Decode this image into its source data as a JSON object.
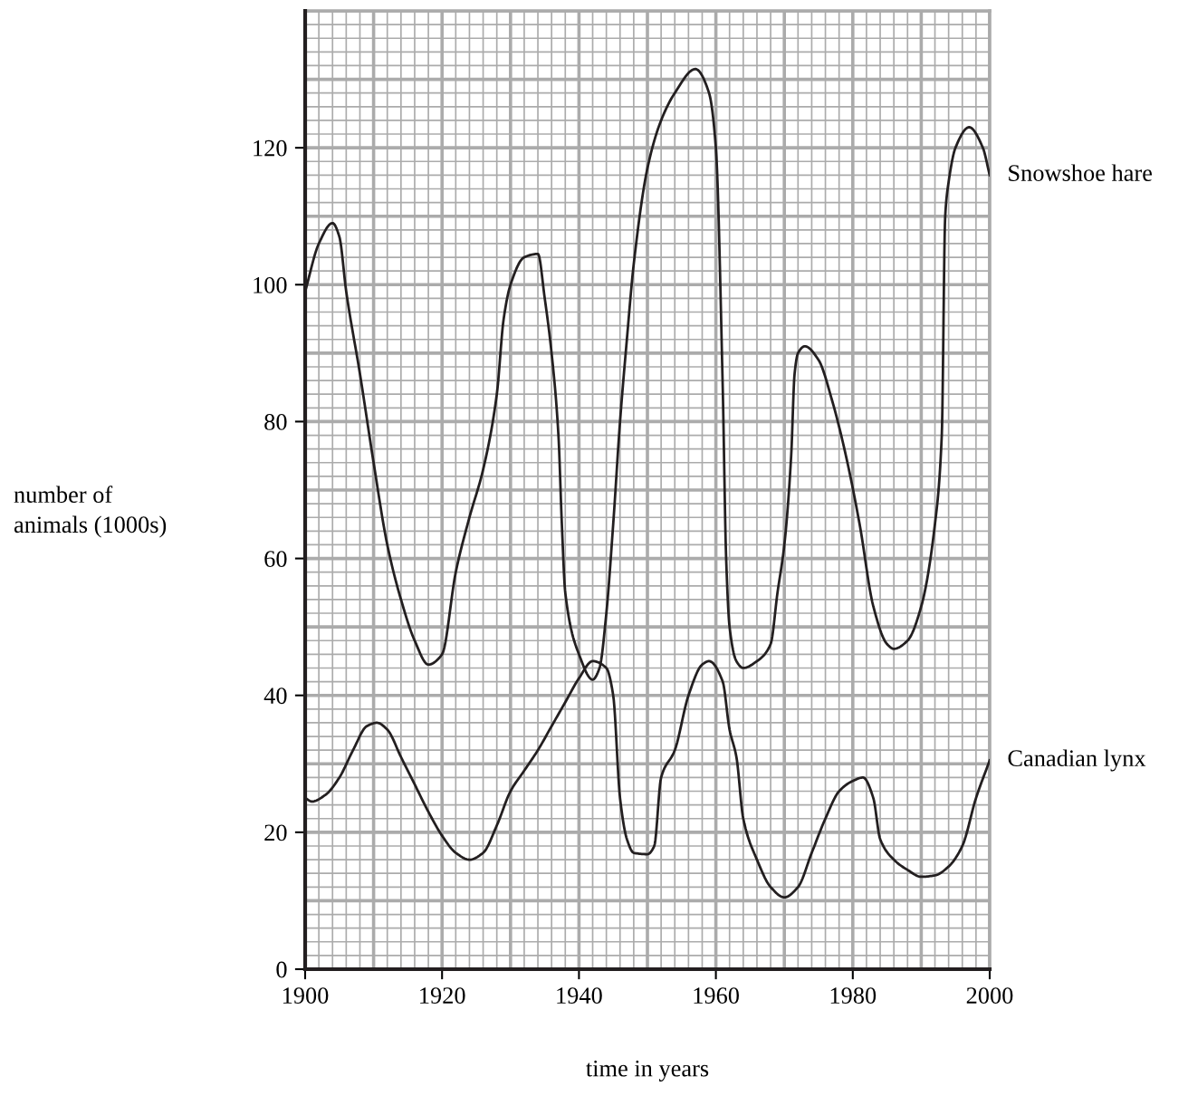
{
  "chart_data": {
    "type": "line",
    "xlabel": "time in years",
    "ylabel": "number of\nanimals (1000s)",
    "xlim": [
      1900,
      2000
    ],
    "xticks": [
      1900,
      1920,
      1940,
      1960,
      1980,
      2000
    ],
    "ylim": [
      0,
      140
    ],
    "yticks": [
      0,
      20,
      40,
      60,
      80,
      100,
      120
    ],
    "grid": true,
    "legend": false,
    "marker": "none",
    "line_style": "solid",
    "series": [
      {
        "name": "Snowshoe hare",
        "color": "#231f20",
        "x": [
          1900,
          1902,
          1904,
          1905,
          1906,
          1908,
          1910,
          1912,
          1914,
          1916,
          1918,
          1920,
          1922,
          1924,
          1926,
          1928,
          1929,
          1930,
          1932,
          1934,
          1935,
          1936,
          1937,
          1937.5,
          1938,
          1940,
          1942,
          1943,
          1944,
          1945,
          1946,
          1947,
          1948,
          1950,
          1952,
          1954,
          1957,
          1959,
          1960,
          1961,
          1961.5,
          1962,
          1963,
          1964,
          1966,
          1968,
          1969,
          1970,
          1971,
          1971.5,
          1972,
          1973,
          1975,
          1977,
          1979,
          1981,
          1983,
          1985,
          1986,
          1988,
          1990,
          1992,
          1993,
          1993.5,
          1994,
          1995,
          1997,
          1999,
          2000
        ],
        "values": [
          99,
          106,
          109,
          107,
          99,
          87,
          74,
          62,
          54,
          48,
          44.5,
          46,
          58,
          66,
          73,
          84,
          95,
          100,
          104,
          104.5,
          98,
          90,
          78,
          65,
          55,
          46,
          42.3,
          44,
          52,
          65,
          80,
          92,
          103,
          117,
          124,
          128,
          131.5,
          128,
          120,
          85,
          60,
          50,
          45,
          44,
          45,
          47.5,
          55,
          62,
          75,
          87,
          90,
          91,
          89,
          83,
          75,
          65,
          53,
          47.5,
          46.8,
          48,
          53,
          65,
          78,
          110,
          115,
          120,
          123,
          120,
          116
        ]
      },
      {
        "name": "Canadian lynx",
        "color": "#231f20",
        "x": [
          1900,
          1901,
          1903,
          1905,
          1907,
          1909,
          1910.5,
          1912,
          1914,
          1916,
          1918,
          1920,
          1922,
          1924,
          1926,
          1928,
          1930,
          1932,
          1934,
          1936,
          1938,
          1940,
          1942,
          1944,
          1945,
          1946,
          1947,
          1948,
          1950,
          1951,
          1952,
          1954,
          1956,
          1958,
          1959,
          1961,
          1962,
          1963,
          1964,
          1966,
          1968,
          1970,
          1972,
          1974,
          1976,
          1978,
          1980,
          1981.5,
          1983,
          1984,
          1986,
          1988,
          1990,
          1992,
          1994,
          1996,
          1998,
          2000
        ],
        "values": [
          25,
          24.5,
          25.5,
          28,
          32,
          35.5,
          36,
          35,
          31,
          27,
          23,
          19.5,
          17,
          16,
          17,
          21,
          26,
          29,
          32,
          35.5,
          39,
          42.5,
          45,
          44,
          40,
          25,
          19,
          17,
          16.8,
          18,
          28,
          32,
          40,
          44.5,
          45,
          42,
          35,
          31,
          22,
          16,
          12,
          10.5,
          12,
          17,
          22,
          26,
          27.5,
          28,
          25,
          19,
          16,
          14.5,
          13.5,
          13.7,
          15,
          18,
          25,
          30.5
        ]
      }
    ]
  }
}
